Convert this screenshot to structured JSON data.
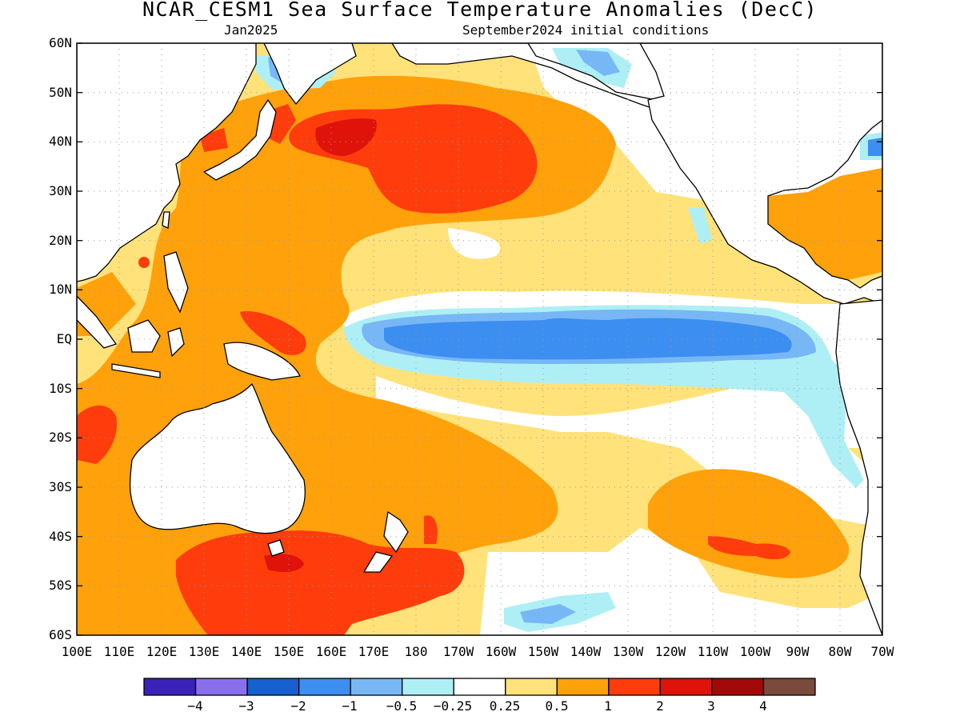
{
  "title": "NCAR_CESM1 Sea Surface Temperature Anomalies (DecC)",
  "subtitle_left": "Jan2025",
  "subtitle_right": "September2024 initial conditions",
  "lat_labels": [
    "60N",
    "50N",
    "40N",
    "30N",
    "20N",
    "10N",
    "EQ",
    "10S",
    "20S",
    "30S",
    "40S",
    "50S",
    "60S"
  ],
  "lon_labels": [
    "100E",
    "110E",
    "120E",
    "130E",
    "140E",
    "150E",
    "160E",
    "170E",
    "180",
    "170W",
    "160W",
    "150W",
    "140W",
    "130W",
    "120W",
    "110W",
    "100W",
    "90W",
    "80W",
    "70W"
  ],
  "colorbar": {
    "labels": [
      "−4",
      "−3",
      "−2",
      "−1",
      "−0.5",
      "−0.25",
      "0.25",
      "0.5",
      "1",
      "2",
      "3",
      "4"
    ],
    "colors": [
      "#3a22b8",
      "#8a6fec",
      "#1760cf",
      "#3c8ef0",
      "#78b7f6",
      "#aeeff5",
      "#ffffff",
      "#ffe27a",
      "#ffa10a",
      "#ff3c0c",
      "#df1309",
      "#a30808",
      "#7a4a3c"
    ]
  }
}
